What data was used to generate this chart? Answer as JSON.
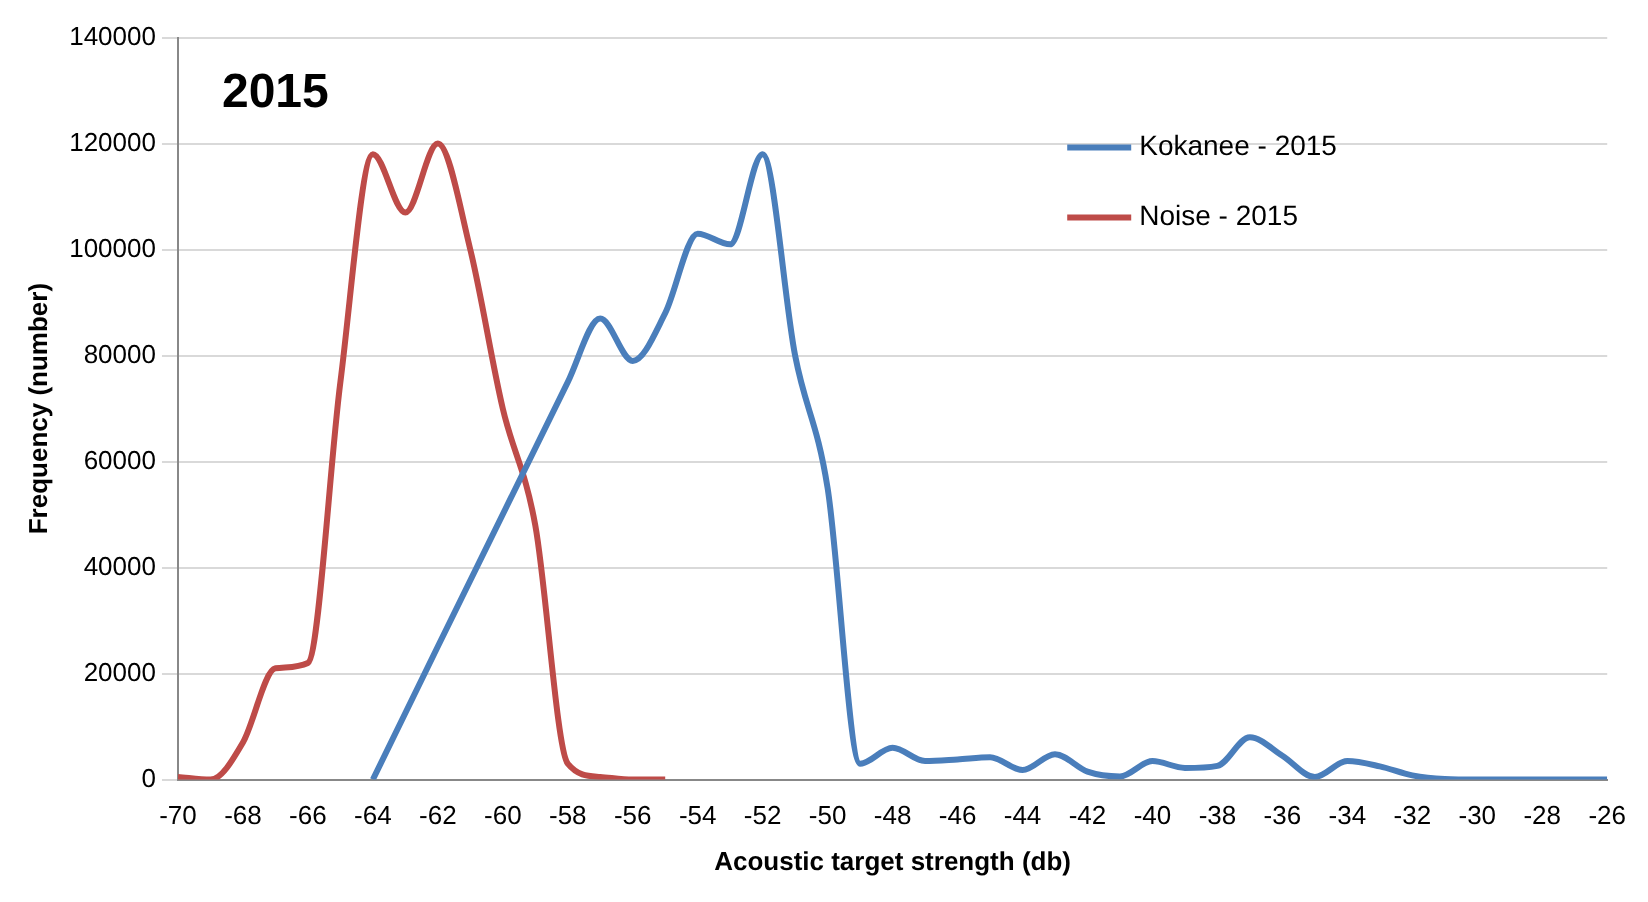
{
  "chart_data": {
    "type": "line",
    "title": "2015",
    "xlabel": "Acoustic target strength (db)",
    "ylabel": "Frequency (number)",
    "xlim": [
      -70,
      -26
    ],
    "xticks": [
      -70,
      -68,
      -66,
      -64,
      -62,
      -60,
      -58,
      -56,
      -54,
      -52,
      -50,
      -48,
      -46,
      -44,
      -42,
      -40,
      -38,
      -36,
      -34,
      -32,
      -30,
      -28,
      -26
    ],
    "ylim": [
      0,
      140000
    ],
    "yticks": [
      0,
      20000,
      40000,
      60000,
      80000,
      100000,
      120000,
      140000
    ],
    "grid": "y",
    "legend": "top right",
    "marker": "none",
    "line_style": "solid",
    "series": [
      {
        "name": "Kokanee - 2015",
        "color": "#4a7ebb",
        "x": [
          -64,
          -58,
          -57,
          -56,
          -55,
          -54,
          -53,
          -52,
          -51,
          -50,
          -49,
          -48,
          -47,
          -46,
          -45,
          -44,
          -43,
          -42,
          -41,
          -40,
          -39,
          -38,
          -37,
          -36,
          -35,
          -34,
          -33,
          -32,
          -31,
          -30,
          -29,
          -28,
          -27,
          -26
        ],
        "values": [
          0,
          75000,
          87000,
          79000,
          88000,
          103000,
          101000,
          118000,
          80000,
          55000,
          3000,
          6000,
          3500,
          3800,
          4200,
          1800,
          4800,
          1500,
          600,
          3500,
          2200,
          2600,
          8000,
          4500,
          500,
          3500,
          2500,
          800,
          100,
          0,
          0,
          0,
          0,
          0
        ]
      },
      {
        "name": "Noise - 2015",
        "color": "#be4b48",
        "x": [
          -70,
          -69,
          -68,
          -67,
          -66,
          -65,
          -64,
          -63,
          -62,
          -61,
          -60,
          -59,
          -58,
          -57,
          -56,
          -55
        ],
        "values": [
          500,
          0,
          7000,
          21000,
          22000,
          75000,
          118000,
          107000,
          120000,
          100000,
          70000,
          48000,
          3000,
          500,
          0,
          0
        ]
      }
    ]
  }
}
